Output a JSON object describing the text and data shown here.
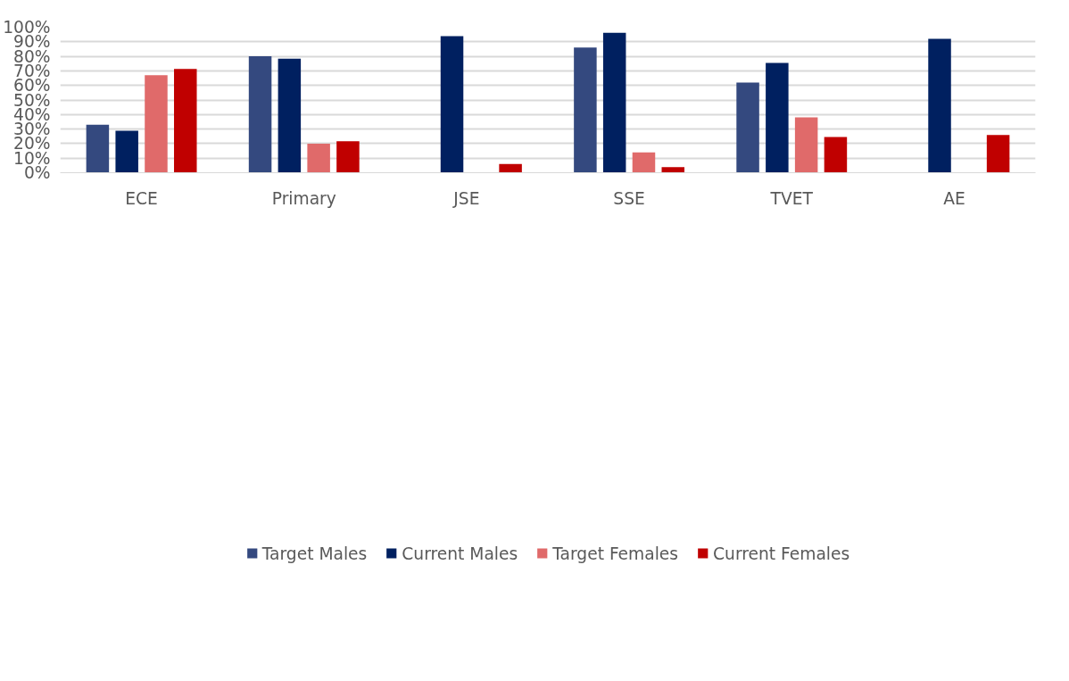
{
  "chart_data": {
    "type": "bar",
    "categories": [
      "ECE",
      "Primary",
      "JSE",
      "SSE",
      "TVET",
      "AE"
    ],
    "series": [
      {
        "name": "Target Males",
        "color": "#34497f",
        "values": [
          33,
          80,
          null,
          86,
          62,
          null
        ]
      },
      {
        "name": "Current Males",
        "color": "#002060",
        "values": [
          28.8,
          78.4,
          93.9,
          96.1,
          75.4,
          92
        ]
      },
      {
        "name": "Target Females",
        "color": "#e06a6a",
        "values": [
          67,
          20,
          null,
          14,
          38,
          null
        ]
      },
      {
        "name": "Current Females",
        "color": "#c00000",
        "values": [
          71.3,
          21.6,
          6,
          3.9,
          24.6,
          25.9
        ]
      }
    ],
    "ylim": [
      0,
      100
    ],
    "yticks": [
      {
        "value": 0,
        "label": "0%"
      },
      {
        "value": 10,
        "label": "10%"
      },
      {
        "value": 20,
        "label": "20%"
      },
      {
        "value": 30,
        "label": "30%"
      },
      {
        "value": 40,
        "label": "40%"
      },
      {
        "value": 50,
        "label": "50%"
      },
      {
        "value": 60,
        "label": "60%"
      },
      {
        "value": 70,
        "label": "70%"
      },
      {
        "value": 80,
        "label": "80%"
      },
      {
        "value": 90,
        "label": "90%"
      },
      {
        "value": 100,
        "label": "100%"
      }
    ],
    "grid": "y",
    "legend": "bottom"
  }
}
